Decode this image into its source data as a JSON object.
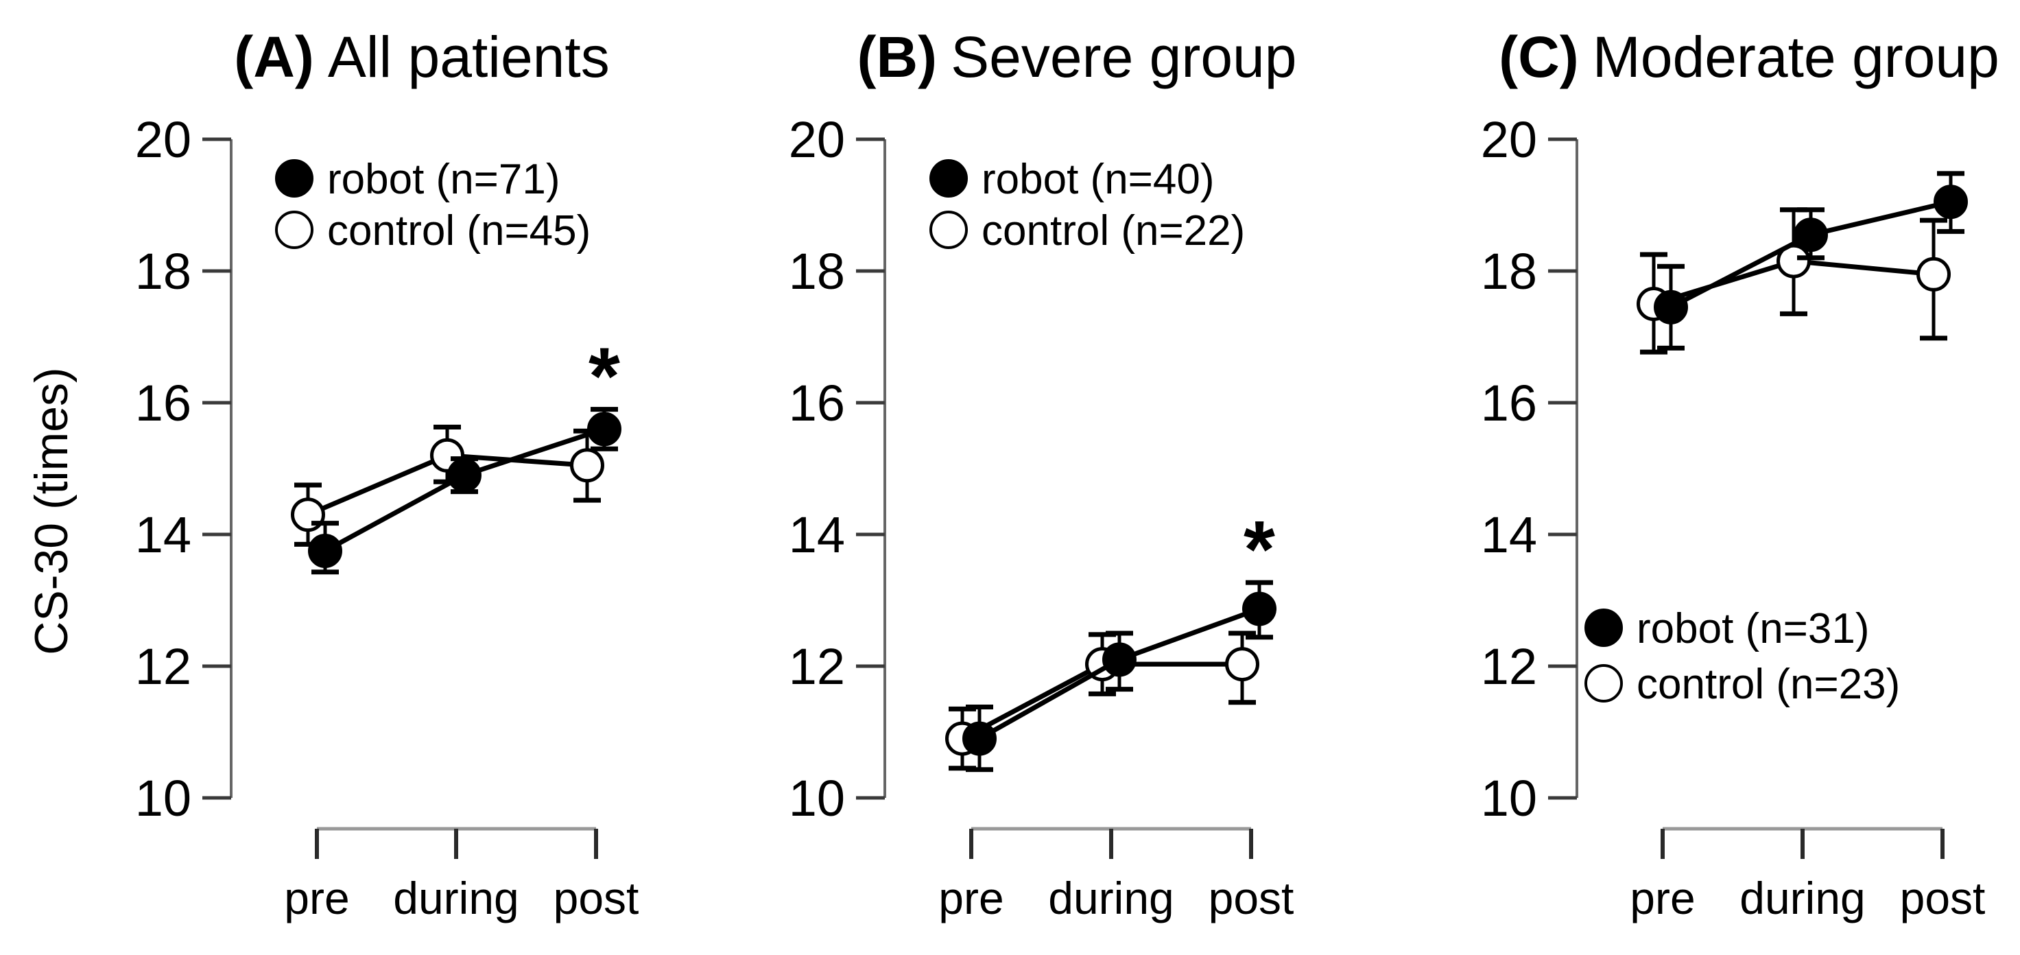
{
  "figure": {
    "background": "#ffffff",
    "ink_color": "#000000",
    "axis_color": "#666666"
  },
  "chart_data": {
    "type": "line",
    "ylabel": "CS-30 (times)",
    "categories": [
      "pre",
      "during",
      "post"
    ],
    "ylim": [
      10,
      20
    ],
    "yticks": [
      10,
      12,
      14,
      16,
      18,
      20
    ],
    "grid": false,
    "legend_markers": {
      "robot": "filled-circle",
      "control": "open-circle"
    },
    "panels": [
      {
        "id": "A",
        "title_prefix": "(A)",
        "title": "All patients",
        "legend_position": "top",
        "significance": {
          "symbol": "*",
          "series": "robot",
          "category": "post"
        },
        "series": [
          {
            "name": "robot",
            "label": "robot (n=71)",
            "marker": "filled",
            "values": [
              13.75,
              14.9,
              15.6
            ],
            "err_up": [
              0.42,
              0.25,
              0.3
            ],
            "err_down": [
              0.32,
              0.25,
              0.3
            ]
          },
          {
            "name": "control",
            "label": "control (n=45)",
            "marker": "open",
            "values": [
              14.3,
              15.2,
              15.05
            ],
            "err_up": [
              0.45,
              0.43,
              0.52
            ],
            "err_down": [
              0.45,
              0.4,
              0.53
            ]
          }
        ]
      },
      {
        "id": "B",
        "title_prefix": "(B)",
        "title": "Severe group",
        "legend_position": "top",
        "significance": {
          "symbol": "*",
          "series": "robot",
          "category": "post"
        },
        "series": [
          {
            "name": "robot",
            "label": "robot (n=40)",
            "marker": "filled",
            "values": [
              10.9,
              12.1,
              12.87
            ],
            "err_up": [
              0.48,
              0.4,
              0.4
            ],
            "err_down": [
              0.47,
              0.45,
              0.43
            ]
          },
          {
            "name": "control",
            "label": "control (n=22)",
            "marker": "open",
            "values": [
              10.9,
              12.03,
              12.03
            ],
            "err_up": [
              0.45,
              0.45,
              0.47
            ],
            "err_down": [
              0.45,
              0.45,
              0.58
            ]
          }
        ]
      },
      {
        "id": "C",
        "title_prefix": "(C)",
        "title": "Moderate group",
        "legend_position": "bottom",
        "significance": null,
        "series": [
          {
            "name": "robot",
            "label": "robot (n=31)",
            "marker": "filled",
            "values": [
              17.45,
              18.55,
              19.05
            ],
            "err_up": [
              0.62,
              0.38,
              0.43
            ],
            "err_down": [
              0.62,
              0.35,
              0.45
            ]
          },
          {
            "name": "control",
            "label": "control (n=23)",
            "marker": "open",
            "values": [
              17.5,
              18.15,
              17.95
            ],
            "err_up": [
              0.75,
              0.78,
              0.82
            ],
            "err_down": [
              0.73,
              0.8,
              0.97
            ]
          }
        ]
      }
    ]
  }
}
